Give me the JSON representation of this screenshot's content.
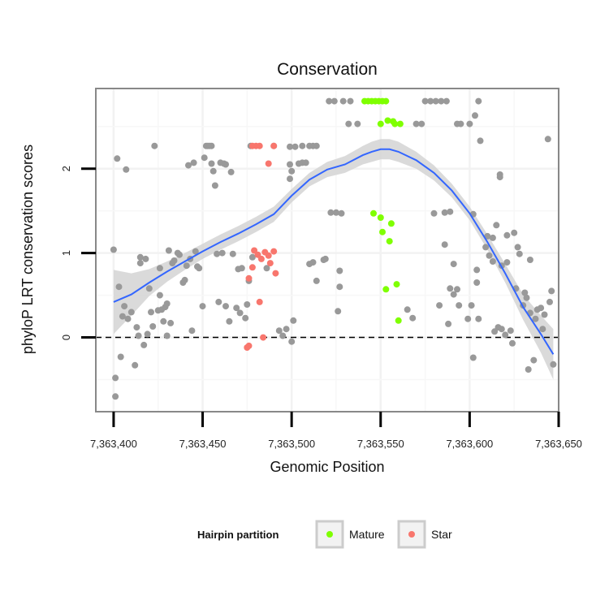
{
  "chart_data": {
    "type": "scatter",
    "title": "Conservation",
    "xlabel": "Genomic Position",
    "ylabel": "phyloP LRT conservation scores",
    "xlim": [
      7363390,
      7363650
    ],
    "ylim": [
      -0.88,
      2.95
    ],
    "x_ticks": [
      7363400,
      7363450,
      7363500,
      7363550,
      7363600,
      7363650
    ],
    "x_tick_labels": [
      "7,363,400",
      "7,363,450",
      "7,363,500",
      "7,363,550",
      "7,363,600",
      "7,363,650"
    ],
    "y_ticks": [
      0,
      1,
      2
    ],
    "y_tick_labels": [
      "0",
      "1",
      "2"
    ],
    "reference_line": {
      "y": 0,
      "style": "dashed"
    },
    "grid": true,
    "legend": {
      "title": "Hairpin partition",
      "placement": "bottom",
      "entries": [
        {
          "label": "Mature",
          "color": "#7fff00"
        },
        {
          "label": "Star",
          "color": "#f8766d"
        }
      ]
    },
    "colors": {
      "other": "#999999",
      "mature": "#7fff00",
      "star": "#f8766d",
      "smooth": "#3366ff",
      "band": "#d4d4d4",
      "panel_border": "#888888"
    },
    "series": [
      {
        "group": "other",
        "points": [
          [
            7363401,
            -0.48
          ],
          [
            7363401,
            -0.7
          ],
          [
            7363400,
            1.04
          ],
          [
            7363402,
            2.12
          ],
          [
            7363404,
            -0.23
          ],
          [
            7363403,
            0.6
          ],
          [
            7363405,
            0.25
          ],
          [
            7363406,
            0.37
          ],
          [
            7363407,
            1.99
          ],
          [
            7363408,
            0.22
          ],
          [
            7363410,
            0.3
          ],
          [
            7363412,
            -0.33
          ],
          [
            7363413,
            0.12
          ],
          [
            7363414,
            0.02
          ],
          [
            7363415,
            0.88
          ],
          [
            7363415,
            0.95
          ],
          [
            7363418,
            0.93
          ],
          [
            7363417,
            -0.09
          ],
          [
            7363419,
            0.04
          ],
          [
            7363420,
            0.58
          ],
          [
            7363421,
            0.3
          ],
          [
            7363422,
            0.13
          ],
          [
            7363423,
            2.27
          ],
          [
            7363425,
            0.32
          ],
          [
            7363426,
            0.82
          ],
          [
            7363426,
            0.5
          ],
          [
            7363427,
            0.33
          ],
          [
            7363428,
            0.19
          ],
          [
            7363429,
            0.36
          ],
          [
            7363430,
            0.4
          ],
          [
            7363430,
            0.02
          ],
          [
            7363431,
            1.03
          ],
          [
            7363432,
            0.17
          ],
          [
            7363433,
            0.88
          ],
          [
            7363434,
            0.91
          ],
          [
            7363437,
            0.98
          ],
          [
            7363436,
            1.0
          ],
          [
            7363439,
            0.65
          ],
          [
            7363440,
            0.68
          ],
          [
            7363441,
            0.85
          ],
          [
            7363442,
            2.04
          ],
          [
            7363443,
            0.93
          ],
          [
            7363444,
            0.08
          ],
          [
            7363445,
            2.07
          ],
          [
            7363446,
            1.02
          ],
          [
            7363448,
            0.82
          ],
          [
            7363447,
            0.84
          ],
          [
            7363450,
            0.37
          ],
          [
            7363451,
            2.13
          ],
          [
            7363452,
            2.27
          ],
          [
            7363453,
            2.27
          ],
          [
            7363454,
            2.27
          ],
          [
            7363455,
            2.27
          ],
          [
            7363455,
            2.06
          ],
          [
            7363456,
            1.97
          ],
          [
            7363457,
            1.8
          ],
          [
            7363458,
            0.99
          ],
          [
            7363459,
            0.42
          ],
          [
            7363460,
            2.07
          ],
          [
            7363461,
            1.0
          ],
          [
            7363462,
            2.06
          ],
          [
            7363463,
            2.05
          ],
          [
            7363463,
            0.37
          ],
          [
            7363465,
            0.19
          ],
          [
            7363466,
            1.96
          ],
          [
            7363467,
            0.99
          ],
          [
            7363469,
            0.35
          ],
          [
            7363470,
            0.81
          ],
          [
            7363471,
            0.29
          ],
          [
            7363472,
            0.82
          ],
          [
            7363474,
            0.23
          ],
          [
            7363475,
            0.39
          ],
          [
            7363476,
            0.67
          ],
          [
            7363477,
            2.27
          ],
          [
            7363478,
            0.95
          ],
          [
            7363486,
            0.82
          ],
          [
            7363490,
            2.27
          ],
          [
            7363493,
            0.08
          ],
          [
            7363495,
            0.02
          ],
          [
            7363497,
            0.1
          ],
          [
            7363499,
            2.26
          ],
          [
            7363500,
            -0.05
          ],
          [
            7363499,
            2.05
          ],
          [
            7363499,
            1.88
          ],
          [
            7363500,
            1.97
          ],
          [
            7363501,
            0.2
          ],
          [
            7363502,
            2.26
          ],
          [
            7363504,
            2.06
          ],
          [
            7363506,
            2.07
          ],
          [
            7363506,
            2.27
          ],
          [
            7363508,
            2.07
          ],
          [
            7363510,
            2.27
          ],
          [
            7363512,
            2.27
          ],
          [
            7363514,
            2.27
          ],
          [
            7363510,
            0.87
          ],
          [
            7363512,
            0.89
          ],
          [
            7363514,
            0.67
          ],
          [
            7363518,
            0.92
          ],
          [
            7363519,
            0.93
          ],
          [
            7363521,
            2.8
          ],
          [
            7363524,
            2.8
          ],
          [
            7363522,
            1.48
          ],
          [
            7363525,
            1.48
          ],
          [
            7363528,
            1.47
          ],
          [
            7363526,
            0.31
          ],
          [
            7363527,
            0.6
          ],
          [
            7363527,
            0.79
          ],
          [
            7363529,
            2.8
          ],
          [
            7363533,
            2.8
          ],
          [
            7363532,
            2.53
          ],
          [
            7363537,
            2.53
          ],
          [
            7363565,
            0.33
          ],
          [
            7363568,
            0.23
          ],
          [
            7363570,
            2.53
          ],
          [
            7363573,
            2.53
          ],
          [
            7363575,
            2.8
          ],
          [
            7363578,
            2.8
          ],
          [
            7363581,
            2.8
          ],
          [
            7363584,
            2.8
          ],
          [
            7363587,
            2.8
          ],
          [
            7363586,
            1.48
          ],
          [
            7363589,
            1.49
          ],
          [
            7363589,
            0.58
          ],
          [
            7363591,
            0.51
          ],
          [
            7363593,
            0.57
          ],
          [
            7363594,
            0.38
          ],
          [
            7363580,
            1.47
          ],
          [
            7363583,
            0.38
          ],
          [
            7363588,
            0.16
          ],
          [
            7363593,
            2.53
          ],
          [
            7363600,
            2.53
          ],
          [
            7363603,
            2.63
          ],
          [
            7363606,
            2.33
          ],
          [
            7363605,
            2.8
          ],
          [
            7363602,
            1.46
          ],
          [
            7363604,
            0.8
          ],
          [
            7363604,
            0.65
          ],
          [
            7363599,
            0.22
          ],
          [
            7363601,
            0.38
          ],
          [
            7363602,
            -0.24
          ],
          [
            7363605,
            0.22
          ],
          [
            7363610,
            1.2
          ],
          [
            7363609,
            1.07
          ],
          [
            7363611,
            0.97
          ],
          [
            7363613,
            0.9
          ],
          [
            7363614,
            0.07
          ],
          [
            7363615,
            1.33
          ],
          [
            7363617,
            1.93
          ],
          [
            7363617,
            1.9
          ],
          [
            7363618,
            0.85
          ],
          [
            7363618,
            0.1
          ],
          [
            7363620,
            0.03
          ],
          [
            7363621,
            0.89
          ],
          [
            7363623,
            0.08
          ],
          [
            7363624,
            -0.07
          ],
          [
            7363625,
            1.24
          ],
          [
            7363626,
            0.58
          ],
          [
            7363627,
            1.07
          ],
          [
            7363628,
            0.99
          ],
          [
            7363630,
            0.38
          ],
          [
            7363631,
            0.53
          ],
          [
            7363632,
            0.47
          ],
          [
            7363633,
            -0.38
          ],
          [
            7363634,
            0.92
          ],
          [
            7363634,
            0.29
          ],
          [
            7363636,
            -0.27
          ],
          [
            7363637,
            0.22
          ],
          [
            7363638,
            0.33
          ],
          [
            7363640,
            0.35
          ],
          [
            7363641,
            0.1
          ],
          [
            7363642,
            0.27
          ],
          [
            7363644,
            2.35
          ],
          [
            7363645,
            0.42
          ],
          [
            7363646,
            0.55
          ],
          [
            7363647,
            -0.32
          ],
          [
            7363613,
            1.18
          ],
          [
            7363616,
            0.12
          ],
          [
            7363621,
            1.21
          ],
          [
            7363595,
            2.53
          ],
          [
            7363591,
            0.87
          ],
          [
            7363586,
            1.1
          ]
        ]
      },
      {
        "group": "mature",
        "points": [
          [
            7363541,
            2.8
          ],
          [
            7363543,
            2.8
          ],
          [
            7363545,
            2.8
          ],
          [
            7363547,
            2.8
          ],
          [
            7363549,
            2.8
          ],
          [
            7363551,
            2.8
          ],
          [
            7363553,
            2.8
          ],
          [
            7363546,
            1.47
          ],
          [
            7363550,
            1.42
          ],
          [
            7363551,
            1.25
          ],
          [
            7363555,
            1.14
          ],
          [
            7363556,
            1.35
          ],
          [
            7363554,
            2.57
          ],
          [
            7363557,
            2.56
          ],
          [
            7363558,
            2.53
          ],
          [
            7363561,
            2.53
          ],
          [
            7363553,
            0.57
          ],
          [
            7363559,
            0.63
          ],
          [
            7363560,
            0.2
          ],
          [
            7363550,
            2.53
          ]
        ]
      },
      {
        "group": "star",
        "points": [
          [
            7363478,
            2.27
          ],
          [
            7363480,
            2.27
          ],
          [
            7363482,
            2.27
          ],
          [
            7363487,
            2.06
          ],
          [
            7363490,
            2.27
          ],
          [
            7363479,
            1.03
          ],
          [
            7363481,
            0.98
          ],
          [
            7363483,
            0.93
          ],
          [
            7363485,
            1.01
          ],
          [
            7363487,
            0.97
          ],
          [
            7363488,
            0.88
          ],
          [
            7363490,
            1.02
          ],
          [
            7363491,
            0.76
          ],
          [
            7363478,
            0.83
          ],
          [
            7363476,
            0.7
          ],
          [
            7363482,
            0.42
          ],
          [
            7363475,
            -0.12
          ],
          [
            7363476,
            -0.1
          ],
          [
            7363484,
            0.0
          ]
        ]
      }
    ],
    "smooth_curve": [
      [
        7363400,
        0.42
      ],
      [
        7363410,
        0.51
      ],
      [
        7363420,
        0.65
      ],
      [
        7363430,
        0.78
      ],
      [
        7363440,
        0.9
      ],
      [
        7363450,
        1.02
      ],
      [
        7363460,
        1.13
      ],
      [
        7363470,
        1.23
      ],
      [
        7363480,
        1.34
      ],
      [
        7363490,
        1.46
      ],
      [
        7363500,
        1.68
      ],
      [
        7363510,
        1.87
      ],
      [
        7363520,
        1.99
      ],
      [
        7363530,
        2.05
      ],
      [
        7363540,
        2.16
      ],
      [
        7363545,
        2.2
      ],
      [
        7363550,
        2.23
      ],
      [
        7363555,
        2.23
      ],
      [
        7363560,
        2.2
      ],
      [
        7363570,
        2.1
      ],
      [
        7363580,
        1.95
      ],
      [
        7363590,
        1.74
      ],
      [
        7363600,
        1.47
      ],
      [
        7363610,
        1.13
      ],
      [
        7363620,
        0.76
      ],
      [
        7363630,
        0.36
      ],
      [
        7363640,
        0.04
      ],
      [
        7363647,
        -0.2
      ]
    ],
    "band_halfwidth": [
      0.38,
      0.25,
      0.16,
      0.12,
      0.1,
      0.09,
      0.09,
      0.09,
      0.09,
      0.09,
      0.08,
      0.08,
      0.09,
      0.1,
      0.11,
      0.12,
      0.12,
      0.12,
      0.12,
      0.1,
      0.09,
      0.08,
      0.08,
      0.09,
      0.11,
      0.15,
      0.22,
      0.3
    ]
  }
}
